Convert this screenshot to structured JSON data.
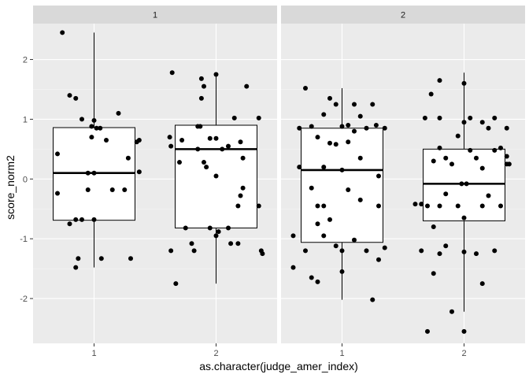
{
  "chart_data": {
    "type": "boxplot",
    "xlabel": "as.character(judge_amer_index)",
    "ylabel": "score_norm2",
    "ylim": [
      -2.75,
      2.6
    ],
    "yticks": [
      -2,
      -1,
      0,
      1,
      2
    ],
    "xcategories": [
      "1",
      "2"
    ],
    "grid": true,
    "legend": "none",
    "colors": {
      "panel_background": "#ebebeb",
      "grid_major": "#ffffff",
      "grid_minor": "#f5f5f5",
      "strip_background": "#d9d9d9",
      "box_fill": "#ffffff",
      "ink": "#000000"
    },
    "facets": [
      {
        "label": "1",
        "groups": [
          {
            "category": "1",
            "box": {
              "whisker_low": -1.48,
              "q1": -0.69,
              "median": 0.1,
              "q3": 0.86,
              "whisker_high": 2.45
            },
            "points": [
              [
                -0.26,
                2.45
              ],
              [
                -0.3,
                0.42
              ],
              [
                -0.3,
                -0.24
              ],
              [
                -0.2,
                1.4
              ],
              [
                -0.2,
                -0.75
              ],
              [
                -0.15,
                1.35
              ],
              [
                -0.1,
                1.0
              ],
              [
                -0.15,
                -0.68
              ],
              [
                -0.1,
                -0.68
              ],
              [
                -0.13,
                -1.33
              ],
              [
                -0.15,
                -1.48
              ],
              [
                -0.05,
                -0.18
              ],
              [
                -0.02,
                0.88
              ],
              [
                -0.02,
                0.7
              ],
              [
                -0.05,
                0.1
              ],
              [
                0.0,
                0.98
              ],
              [
                0.0,
                0.1
              ],
              [
                0.0,
                -0.68
              ],
              [
                0.02,
                0.85
              ],
              [
                0.05,
                0.85
              ],
              [
                0.06,
                -1.33
              ],
              [
                0.1,
                0.65
              ],
              [
                0.15,
                -0.18
              ],
              [
                0.2,
                1.1
              ],
              [
                0.25,
                -0.18
              ],
              [
                0.28,
                0.35
              ],
              [
                0.3,
                -1.33
              ],
              [
                0.35,
                0.62
              ],
              [
                0.37,
                0.65
              ],
              [
                0.37,
                0.12
              ]
            ]
          },
          {
            "category": "2",
            "box": {
              "whisker_low": -1.75,
              "q1": -0.82,
              "median": 0.5,
              "q3": 0.9,
              "whisker_high": 1.78
            },
            "points": [
              [
                -0.38,
                0.7
              ],
              [
                -0.37,
                0.55
              ],
              [
                -0.37,
                -1.2
              ],
              [
                -0.36,
                1.78
              ],
              [
                -0.33,
                -1.75
              ],
              [
                -0.3,
                0.28
              ],
              [
                -0.28,
                0.65
              ],
              [
                -0.25,
                -0.82
              ],
              [
                -0.2,
                -1.08
              ],
              [
                -0.18,
                -1.2
              ],
              [
                -0.15,
                0.88
              ],
              [
                -0.13,
                0.88
              ],
              [
                -0.15,
                0.5
              ],
              [
                -0.12,
                1.68
              ],
              [
                -0.12,
                1.35
              ],
              [
                -0.1,
                1.55
              ],
              [
                -0.1,
                0.28
              ],
              [
                -0.08,
                0.2
              ],
              [
                -0.05,
                0.68
              ],
              [
                -0.05,
                -0.82
              ],
              [
                0.0,
                1.75
              ],
              [
                0.0,
                0.68
              ],
              [
                0.0,
                0.05
              ],
              [
                0.0,
                -0.95
              ],
              [
                0.02,
                -0.88
              ],
              [
                0.05,
                0.5
              ],
              [
                0.1,
                0.55
              ],
              [
                0.1,
                -0.82
              ],
              [
                0.12,
                -1.08
              ],
              [
                0.15,
                1.02
              ],
              [
                0.18,
                -1.08
              ],
              [
                0.18,
                -0.45
              ],
              [
                0.2,
                0.62
              ],
              [
                0.2,
                -0.28
              ],
              [
                0.22,
                0.35
              ],
              [
                0.22,
                -0.15
              ],
              [
                0.25,
                1.55
              ],
              [
                0.35,
                1.02
              ],
              [
                0.35,
                -0.45
              ],
              [
                0.37,
                -1.2
              ],
              [
                0.38,
                -1.25
              ]
            ]
          }
        ]
      },
      {
        "label": "2",
        "groups": [
          {
            "category": "1",
            "box": {
              "whisker_low": -2.02,
              "q1": -1.06,
              "median": 0.15,
              "q3": 0.85,
              "whisker_high": 1.52
            },
            "points": [
              [
                -0.4,
                -1.48
              ],
              [
                -0.4,
                -0.95
              ],
              [
                -0.35,
                0.85
              ],
              [
                -0.35,
                0.2
              ],
              [
                -0.3,
                1.52
              ],
              [
                -0.3,
                -1.2
              ],
              [
                -0.25,
                0.88
              ],
              [
                -0.25,
                -0.15
              ],
              [
                -0.25,
                -1.65
              ],
              [
                -0.2,
                0.7
              ],
              [
                -0.2,
                -0.45
              ],
              [
                -0.2,
                -0.75
              ],
              [
                -0.2,
                -1.72
              ],
              [
                -0.15,
                1.08
              ],
              [
                -0.15,
                0.2
              ],
              [
                -0.15,
                -0.45
              ],
              [
                -0.15,
                -0.95
              ],
              [
                -0.1,
                1.35
              ],
              [
                -0.1,
                0.6
              ],
              [
                -0.1,
                -0.68
              ],
              [
                -0.05,
                1.25
              ],
              [
                -0.05,
                0.58
              ],
              [
                -0.05,
                -1.12
              ],
              [
                0.0,
                0.88
              ],
              [
                0.0,
                0.15
              ],
              [
                0.0,
                -1.2
              ],
              [
                0.0,
                -1.55
              ],
              [
                0.05,
                0.9
              ],
              [
                0.05,
                0.62
              ],
              [
                0.05,
                -0.18
              ],
              [
                0.1,
                1.25
              ],
              [
                0.1,
                0.8
              ],
              [
                0.1,
                -1.02
              ],
              [
                0.15,
                1.05
              ],
              [
                0.15,
                0.35
              ],
              [
                0.15,
                -0.35
              ],
              [
                0.2,
                0.85
              ],
              [
                0.2,
                -1.2
              ],
              [
                0.25,
                1.25
              ],
              [
                0.25,
                -2.02
              ],
              [
                0.28,
                0.9
              ],
              [
                0.3,
                0.05
              ],
              [
                0.3,
                -0.45
              ],
              [
                0.3,
                -1.35
              ],
              [
                0.35,
                0.85
              ],
              [
                0.35,
                -1.15
              ]
            ]
          },
          {
            "category": "2",
            "box": {
              "whisker_low": -2.22,
              "q1": -0.7,
              "median": -0.08,
              "q3": 0.5,
              "whisker_high": 1.78
            },
            "points": [
              [
                -0.4,
                -0.42
              ],
              [
                -0.35,
                -0.42
              ],
              [
                -0.35,
                -1.2
              ],
              [
                -0.32,
                1.02
              ],
              [
                -0.3,
                -0.45
              ],
              [
                -0.3,
                -2.55
              ],
              [
                -0.27,
                1.42
              ],
              [
                -0.25,
                0.3
              ],
              [
                -0.25,
                -0.8
              ],
              [
                -0.25,
                -1.58
              ],
              [
                -0.2,
                1.65
              ],
              [
                -0.2,
                1.02
              ],
              [
                -0.2,
                0.52
              ],
              [
                -0.2,
                -0.45
              ],
              [
                -0.2,
                -1.25
              ],
              [
                -0.15,
                0.35
              ],
              [
                -0.15,
                -0.25
              ],
              [
                -0.15,
                -1.12
              ],
              [
                -0.1,
                0.25
              ],
              [
                -0.1,
                -2.22
              ],
              [
                -0.05,
                0.72
              ],
              [
                -0.05,
                -0.45
              ],
              [
                -0.02,
                -0.08
              ],
              [
                0.0,
                1.6
              ],
              [
                0.0,
                0.95
              ],
              [
                0.0,
                -0.65
              ],
              [
                0.0,
                -1.22
              ],
              [
                0.0,
                -2.55
              ],
              [
                0.02,
                -0.08
              ],
              [
                0.05,
                1.02
              ],
              [
                0.05,
                0.48
              ],
              [
                0.1,
                0.35
              ],
              [
                0.1,
                -1.25
              ],
              [
                0.15,
                0.95
              ],
              [
                0.15,
                0.18
              ],
              [
                0.15,
                -0.45
              ],
              [
                0.15,
                -1.75
              ],
              [
                0.2,
                0.85
              ],
              [
                0.2,
                -0.28
              ],
              [
                0.25,
                1.02
              ],
              [
                0.25,
                0.48
              ],
              [
                0.25,
                -1.2
              ],
              [
                0.3,
                0.52
              ],
              [
                0.3,
                -0.45
              ],
              [
                0.35,
                0.85
              ],
              [
                0.35,
                0.38
              ],
              [
                0.35,
                0.25
              ],
              [
                0.37,
                0.25
              ]
            ]
          }
        ]
      }
    ]
  }
}
